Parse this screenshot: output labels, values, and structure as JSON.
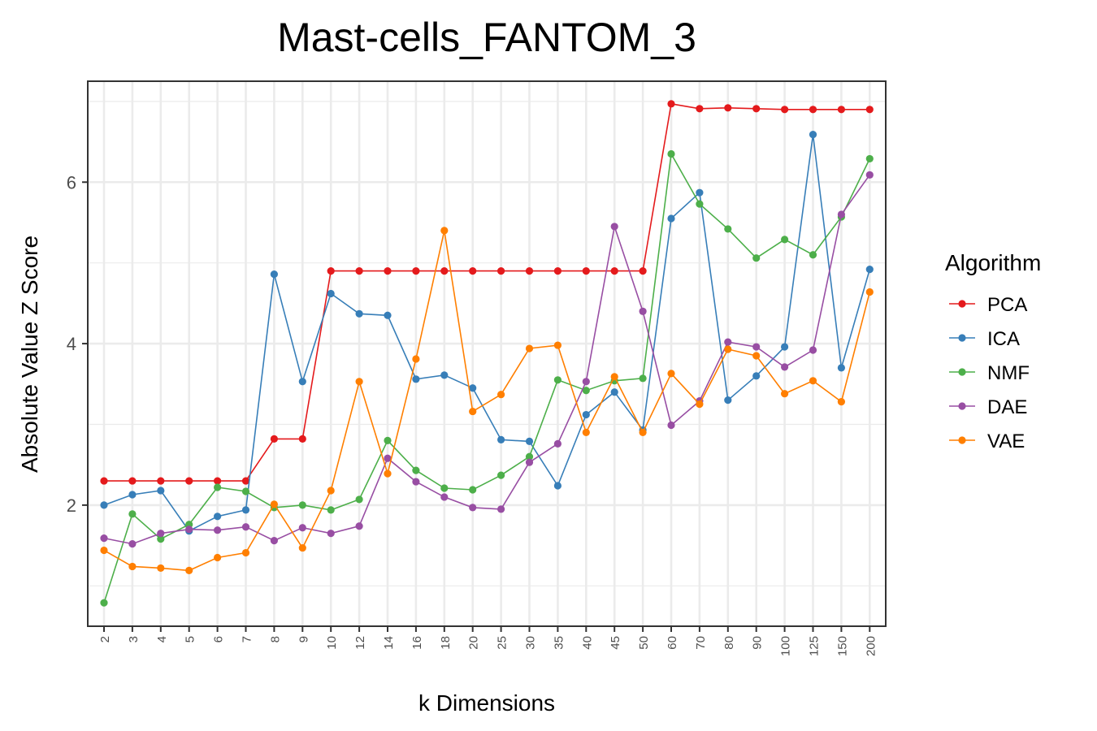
{
  "chart_data": {
    "type": "line",
    "title": "Mast-cells_FANTOM_3",
    "xlabel": "k Dimensions",
    "ylabel": "Absolute Value Z Score",
    "ylim": [
      0.5,
      7.25
    ],
    "yticks": [
      2,
      4,
      6
    ],
    "grid": true,
    "legend_title": "Algorithm",
    "legend_position": "right",
    "categories": [
      "2",
      "3",
      "4",
      "5",
      "6",
      "7",
      "8",
      "9",
      "10",
      "12",
      "14",
      "16",
      "18",
      "20",
      "25",
      "30",
      "35",
      "40",
      "45",
      "50",
      "60",
      "70",
      "80",
      "90",
      "100",
      "125",
      "150",
      "200"
    ],
    "series": [
      {
        "name": "PCA",
        "color": "#e41a1c",
        "values": [
          2.3,
          2.3,
          2.3,
          2.3,
          2.3,
          2.3,
          2.82,
          2.82,
          4.9,
          4.9,
          4.9,
          4.9,
          4.9,
          4.9,
          4.9,
          4.9,
          4.9,
          4.9,
          4.9,
          4.9,
          6.97,
          6.91,
          6.92,
          6.91,
          6.9,
          6.9,
          6.9,
          6.9
        ]
      },
      {
        "name": "ICA",
        "color": "#377eb8",
        "values": [
          2.0,
          2.13,
          2.18,
          1.68,
          1.86,
          1.94,
          4.86,
          3.53,
          4.62,
          4.37,
          4.35,
          3.56,
          3.61,
          3.45,
          2.81,
          2.79,
          2.24,
          3.12,
          3.4,
          2.93,
          5.55,
          5.87,
          3.3,
          3.6,
          3.96,
          6.59,
          3.7,
          4.92
        ]
      },
      {
        "name": "NMF",
        "color": "#4daf4a",
        "values": [
          0.79,
          1.89,
          1.58,
          1.76,
          2.22,
          2.17,
          1.97,
          2.0,
          1.94,
          2.07,
          2.8,
          2.43,
          2.21,
          2.19,
          2.37,
          2.6,
          3.55,
          3.42,
          3.54,
          3.57,
          6.35,
          5.73,
          5.42,
          5.06,
          5.29,
          5.1,
          5.57,
          6.29
        ]
      },
      {
        "name": "DAE",
        "color": "#984ea3",
        "values": [
          1.59,
          1.52,
          1.65,
          1.7,
          1.69,
          1.73,
          1.56,
          1.72,
          1.65,
          1.74,
          2.58,
          2.29,
          2.1,
          1.97,
          1.95,
          2.53,
          2.76,
          3.53,
          5.45,
          4.4,
          2.99,
          3.29,
          4.02,
          3.96,
          3.71,
          3.92,
          5.6,
          6.09
        ]
      },
      {
        "name": "VAE",
        "color": "#ff7f00",
        "values": [
          1.44,
          1.24,
          1.22,
          1.19,
          1.35,
          1.41,
          2.01,
          1.47,
          2.18,
          3.53,
          2.39,
          3.81,
          5.4,
          3.16,
          3.37,
          3.94,
          3.98,
          2.9,
          3.59,
          2.9,
          3.63,
          3.25,
          3.93,
          3.85,
          3.38,
          3.54,
          3.28,
          4.64
        ]
      }
    ]
  }
}
